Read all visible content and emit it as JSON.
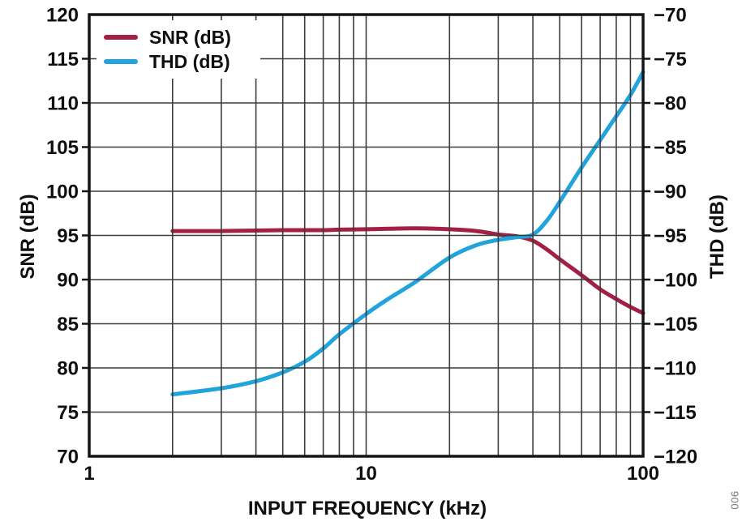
{
  "figure": {
    "fig_number": "006",
    "colors": {
      "snr": "#A41F44",
      "thd": "#21A3DB",
      "grid": "#3c3c3c",
      "frame": "#151515",
      "text": "#0f0f0f",
      "fig_number_color": "#7a7a7a",
      "legend_bg": "#ffffff"
    }
  },
  "chart_data": {
    "type": "line",
    "title": "",
    "xlabel": "INPUT FREQUENCY (kHz)",
    "ylabel_left": "SNR (dB)",
    "ylabel_right": "THD (dB)",
    "x_scale": "log",
    "xlim": [
      1,
      100
    ],
    "ylim_left": [
      70,
      120
    ],
    "ylim_right": [
      -120,
      -70
    ],
    "grid": true,
    "legend_position": "top-left",
    "x_ticks": [
      1,
      10,
      100
    ],
    "x_gridlines": [
      1,
      2,
      3,
      4,
      5,
      6,
      7,
      8,
      9,
      10,
      20,
      30,
      40,
      50,
      60,
      70,
      80,
      90,
      100
    ],
    "y_ticks_left": [
      120,
      115,
      110,
      105,
      100,
      95,
      90,
      85,
      80,
      75,
      70
    ],
    "y_ticks_right": [
      -70,
      -75,
      -80,
      -85,
      -90,
      -95,
      -100,
      -105,
      -110,
      -115,
      -120
    ],
    "series": [
      {
        "name": "SNR (dB)",
        "axis": "left",
        "color": "#A41F44",
        "x": [
          2,
          3,
          4,
          5,
          6,
          7,
          8,
          10,
          12,
          15,
          20,
          25,
          30,
          35,
          40,
          45,
          50,
          60,
          70,
          80,
          90,
          100
        ],
        "values": [
          95.5,
          95.5,
          95.55,
          95.6,
          95.6,
          95.6,
          95.65,
          95.7,
          95.75,
          95.8,
          95.7,
          95.5,
          95.1,
          94.9,
          94.4,
          93.4,
          92.3,
          90.5,
          88.9,
          87.8,
          86.9,
          86.2
        ]
      },
      {
        "name": "THD (dB)",
        "axis": "right",
        "color": "#21A3DB",
        "x": [
          2,
          3,
          4,
          5,
          6,
          7,
          8,
          10,
          12,
          15,
          20,
          25,
          30,
          35,
          40,
          45,
          50,
          60,
          70,
          80,
          90,
          100
        ],
        "values": [
          -113.0,
          -112.3,
          -111.5,
          -110.5,
          -109.3,
          -107.8,
          -106.2,
          -103.9,
          -102.2,
          -100.3,
          -97.5,
          -96.1,
          -95.5,
          -95.2,
          -94.9,
          -93.3,
          -91.2,
          -87.3,
          -84.2,
          -81.5,
          -79.1,
          -76.5
        ]
      }
    ]
  }
}
